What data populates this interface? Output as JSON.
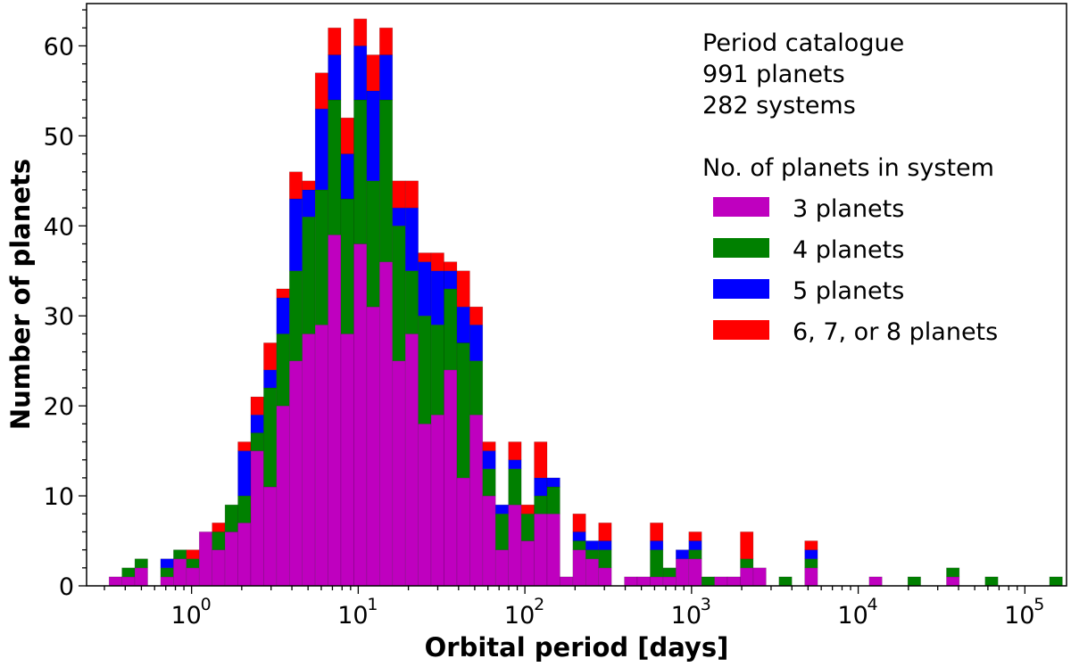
{
  "chart_data": {
    "type": "bar",
    "stacked": true,
    "xscale": "log",
    "xlabel": "Orbital period [days]",
    "ylabel": "Number of planets",
    "xlim_log10": [
      -0.63,
      5.25
    ],
    "ylim": [
      0,
      64.7
    ],
    "yticks": [
      0,
      10,
      20,
      30,
      40,
      50,
      60
    ],
    "xticks": [
      {
        "base": "10",
        "exp": "0"
      },
      {
        "base": "10",
        "exp": "1"
      },
      {
        "base": "10",
        "exp": "2"
      },
      {
        "base": "10",
        "exp": "3"
      },
      {
        "base": "10",
        "exp": "4"
      },
      {
        "base": "10",
        "exp": "5"
      }
    ],
    "grid": false,
    "bins": {
      "log10_start": -0.495,
      "log10_width": 0.0773,
      "count": 74
    },
    "series": [
      {
        "name": "3 planets",
        "color": "#bf00bf",
        "values": [
          1,
          1,
          2,
          0,
          1,
          3,
          2,
          6,
          4,
          6,
          7,
          15,
          11,
          20,
          25,
          28,
          29,
          39,
          28,
          38,
          31,
          36,
          25,
          28,
          18,
          19,
          24,
          12,
          19,
          10,
          4,
          9,
          5,
          8,
          8,
          1,
          4,
          3,
          2,
          0,
          1,
          1,
          1,
          1,
          3,
          3,
          0,
          1,
          1,
          2,
          2,
          0,
          0,
          0,
          2,
          0,
          0,
          0,
          0,
          1,
          0,
          0,
          0,
          0,
          0,
          1,
          0,
          0,
          0,
          0,
          0,
          0,
          0,
          0
        ]
      },
      {
        "name": "4 planets",
        "color": "#008000",
        "values": [
          0,
          1,
          1,
          0,
          1,
          1,
          1,
          0,
          2,
          3,
          3,
          2,
          11,
          8,
          10,
          13,
          15,
          15,
          15,
          16,
          14,
          18,
          15,
          7,
          12,
          10,
          9,
          15,
          6,
          3,
          4,
          4,
          3,
          2,
          3,
          0,
          1,
          1,
          2,
          0,
          0,
          0,
          3,
          1,
          0,
          1,
          1,
          0,
          0,
          1,
          0,
          0,
          1,
          0,
          1,
          0,
          0,
          0,
          0,
          0,
          0,
          0,
          1,
          0,
          0,
          1,
          0,
          0,
          1,
          0,
          0,
          0,
          0,
          1
        ]
      },
      {
        "name": "5 planets",
        "color": "#0000ff",
        "values": [
          0,
          0,
          0,
          0,
          1,
          0,
          0,
          0,
          0,
          0,
          5,
          2,
          2,
          4,
          8,
          3,
          9,
          5,
          5,
          6,
          10,
          5,
          2,
          7,
          6,
          6,
          2,
          4,
          4,
          2,
          1,
          1,
          0,
          2,
          1,
          0,
          1,
          1,
          1,
          0,
          0,
          0,
          1,
          0,
          1,
          1,
          0,
          0,
          0,
          0,
          0,
          0,
          0,
          0,
          1,
          0,
          0,
          0,
          0,
          0,
          0,
          0,
          0,
          0,
          0,
          0,
          0,
          0,
          0,
          0,
          0,
          0,
          0,
          0
        ]
      },
      {
        "name": "6, 7, or 8 planets",
        "color": "#ff0000",
        "values": [
          0,
          0,
          0,
          0,
          0,
          0,
          1,
          0,
          1,
          0,
          1,
          2,
          3,
          1,
          3,
          1,
          4,
          3,
          4,
          3,
          4,
          3,
          3,
          3,
          1,
          2,
          1,
          4,
          2,
          1,
          0,
          2,
          1,
          4,
          0,
          0,
          2,
          0,
          2,
          0,
          0,
          0,
          2,
          0,
          0,
          1,
          0,
          0,
          0,
          3,
          0,
          0,
          0,
          0,
          1,
          0,
          0,
          0,
          0,
          0,
          0,
          0,
          0,
          0,
          0,
          0,
          0,
          0,
          0,
          0,
          0,
          0,
          0,
          0
        ]
      }
    ],
    "annotation": {
      "title": "Period catalogue",
      "planets": "991 planets",
      "systems": "282 systems"
    },
    "legend": {
      "title": "No. of planets in system",
      "placement": "top-right"
    }
  }
}
